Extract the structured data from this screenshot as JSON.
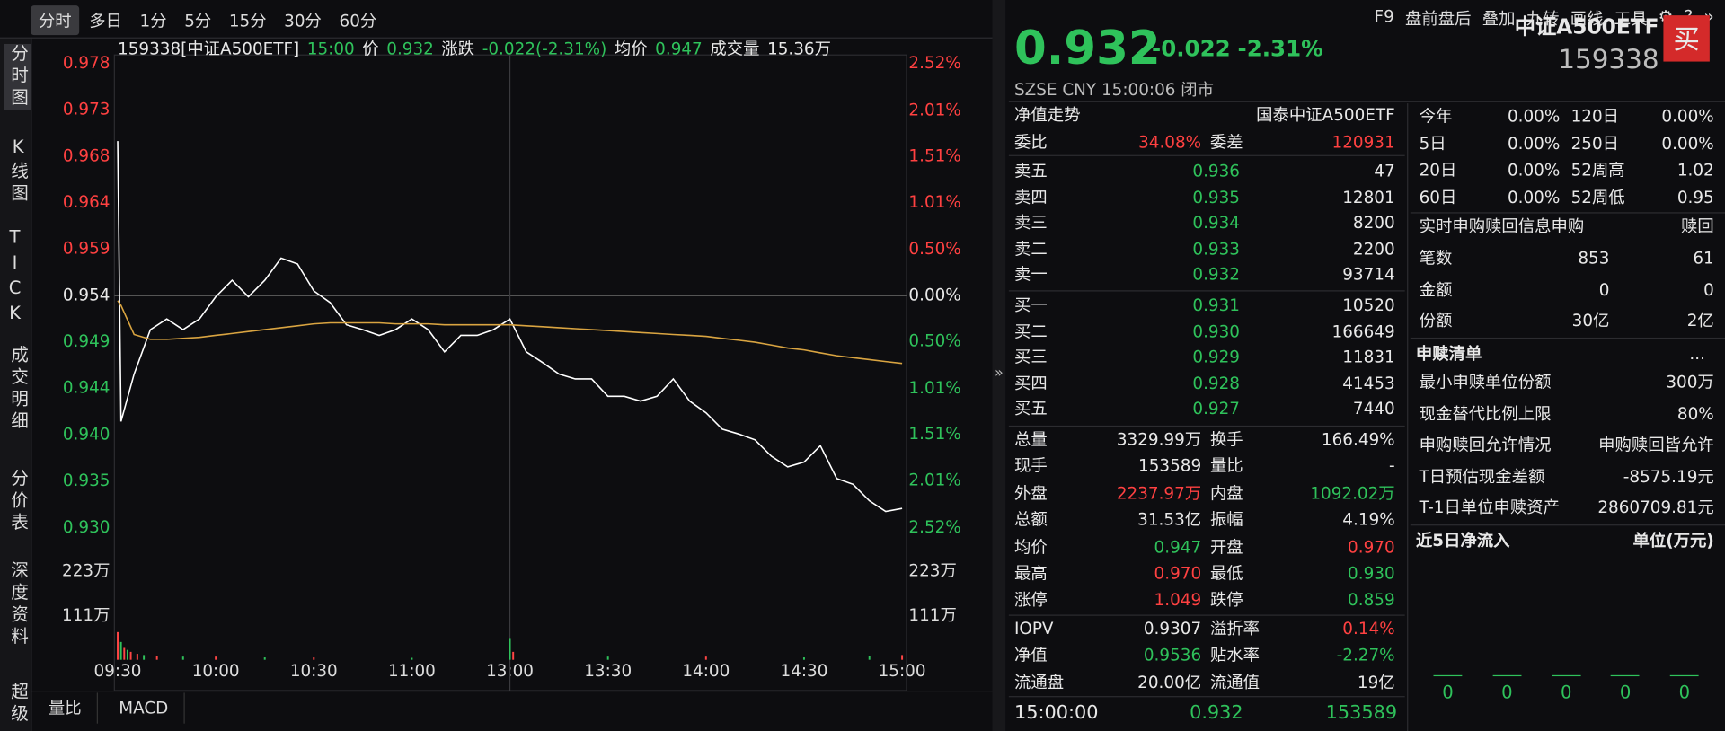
{
  "toolbar": {
    "tabs": [
      "分时",
      "多日",
      "1分",
      "5分",
      "15分",
      "30分",
      "60分"
    ],
    "tools": [
      "F9",
      "盘前盘后",
      "叠加",
      "九转",
      "画线",
      "工具"
    ]
  },
  "sidebar": [
    "分时图",
    "K线图",
    "TICK",
    "成交明细",
    "分价表",
    "深度资料",
    "超级"
  ],
  "chart_header": {
    "code": "159338[中证A500ETF]",
    "time": "15:00",
    "price_label": "价",
    "price": "0.932",
    "change_label": "涨跌",
    "change": "-0.022(-2.31%)",
    "avg_label": "均价",
    "avg": "0.947",
    "volume_label": "成交量",
    "volume": "15.36万"
  },
  "bottom_tabs": [
    "量比",
    "MACD"
  ],
  "chart_data": [
    {
      "type": "line",
      "x": [
        0,
        1,
        5,
        10,
        15,
        20,
        25,
        30,
        35,
        40,
        45,
        50,
        55,
        60,
        65,
        70,
        75,
        80,
        85,
        90,
        95,
        100,
        105,
        110,
        115,
        120,
        125,
        130,
        135,
        140,
        145,
        150,
        155,
        160,
        165,
        170,
        175,
        180,
        185,
        190,
        195,
        200,
        205,
        210,
        215,
        220,
        225,
        230,
        235,
        240
      ],
      "xlim": [
        0,
        240
      ],
      "xticks": [
        {
          "value": 0,
          "label": "09:30"
        },
        {
          "value": 30,
          "label": "10:00"
        },
        {
          "value": 60,
          "label": "10:30"
        },
        {
          "value": 90,
          "label": "11:00"
        },
        {
          "value": 120,
          "label": "13:00"
        },
        {
          "value": 150,
          "label": "13:30"
        },
        {
          "value": 180,
          "label": "14:00"
        },
        {
          "value": 210,
          "label": "14:30"
        },
        {
          "value": 240,
          "label": "15:00"
        }
      ],
      "ylim": [
        0.93,
        0.978
      ],
      "yticks": [
        {
          "value": 0.978,
          "label": "0.978"
        },
        {
          "value": 0.9732,
          "label": "0.973"
        },
        {
          "value": 0.9684,
          "label": "0.968"
        },
        {
          "value": 0.9636,
          "label": "0.964"
        },
        {
          "value": 0.9588,
          "label": "0.959"
        },
        {
          "value": 0.954,
          "label": "0.954"
        },
        {
          "value": 0.9492,
          "label": "0.949"
        },
        {
          "value": 0.9444,
          "label": "0.944"
        },
        {
          "value": 0.9396,
          "label": "0.940"
        },
        {
          "value": 0.9348,
          "label": "0.935"
        },
        {
          "value": 0.93,
          "label": "0.930"
        }
      ],
      "y2lim": [
        -2.52,
        2.52
      ],
      "y2ticks": [
        {
          "value": 2.52,
          "label": "2.52%"
        },
        {
          "value": 2.01,
          "label": "2.01%"
        },
        {
          "value": 1.51,
          "label": "1.51%"
        },
        {
          "value": 1.01,
          "label": "1.01%"
        },
        {
          "value": 0.5,
          "label": "0.50%"
        },
        {
          "value": 0,
          "label": "0.00%"
        },
        {
          "value": -0.5,
          "label": "0.50%"
        },
        {
          "value": -1.01,
          "label": "1.01%"
        },
        {
          "value": -1.51,
          "label": "1.51%"
        },
        {
          "value": -2.01,
          "label": "2.01%"
        },
        {
          "value": -2.52,
          "label": "2.52%"
        }
      ],
      "series": [
        {
          "color": "#ffffff",
          "values": [
            0.97,
            0.941,
            0.9459,
            0.9505,
            0.9516,
            0.9505,
            0.9516,
            0.9539,
            0.9556,
            0.9539,
            0.9556,
            0.9579,
            0.9573,
            0.9545,
            0.9533,
            0.951,
            0.9505,
            0.9499,
            0.9505,
            0.9516,
            0.9505,
            0.9482,
            0.9499,
            0.9499,
            0.9505,
            0.9516,
            0.9482,
            0.9471,
            0.9459,
            0.9454,
            0.9454,
            0.9436,
            0.9436,
            0.9431,
            0.9436,
            0.9454,
            0.9431,
            0.9419,
            0.9402,
            0.9397,
            0.9391,
            0.9374,
            0.9363,
            0.9368,
            0.9385,
            0.9351,
            0.9345,
            0.9328,
            0.9317,
            0.932
          ]
        },
        {
          "color": "#d9a441",
          "values": [
            0.9535,
            0.953,
            0.95,
            0.9495,
            0.9495,
            0.9496,
            0.9497,
            0.9499,
            0.9501,
            0.9503,
            0.9505,
            0.9507,
            0.9509,
            0.9511,
            0.9512,
            0.9512,
            0.9512,
            0.9512,
            0.9511,
            0.9511,
            0.9511,
            0.951,
            0.951,
            0.951,
            0.951,
            0.951,
            0.9509,
            0.9508,
            0.9507,
            0.9506,
            0.9505,
            0.9504,
            0.9503,
            0.9502,
            0.9501,
            0.95,
            0.9499,
            0.9498,
            0.9496,
            0.9494,
            0.9492,
            0.9489,
            0.9486,
            0.9484,
            0.9481,
            0.9478,
            0.9476,
            0.9474,
            0.9472,
            0.947
          ]
        }
      ]
    },
    {
      "type": "bar",
      "x": [
        0,
        1,
        2,
        3,
        4,
        6,
        8,
        12,
        20,
        30,
        45,
        60,
        90,
        120,
        121,
        150,
        180,
        210,
        230,
        240
      ],
      "values": [
        70,
        45,
        30,
        25,
        20,
        15,
        12,
        10,
        8,
        8,
        6,
        6,
        5,
        55,
        20,
        8,
        8,
        6,
        10,
        12
      ],
      "colors": [
        "#ff4545",
        "#2fc25b",
        "#ff4545",
        "#2fc25b",
        "#ff4545",
        "#ff4545",
        "#2fc25b",
        "#ff4545",
        "#2fc25b",
        "#ff4545",
        "#2fc25b",
        "#ff4545",
        "#2fc25b",
        "#2fc25b",
        "#ff4545",
        "#2fc25b",
        "#ff4545",
        "#2fc25b",
        "#2fc25b",
        "#ff4545"
      ],
      "xlim": [
        0,
        240
      ],
      "ylim": [
        0,
        250
      ],
      "yticks": [
        {
          "value": 223,
          "label": "223万"
        },
        {
          "value": 111,
          "label": "111万"
        }
      ]
    }
  ],
  "quote": {
    "price": "0.932",
    "change": "-0.022",
    "change_pct": "-2.31%",
    "name": "中证A500ETF",
    "code": "159338",
    "buy": "买",
    "status": "SZSE  CNY  15:00:06  闭市"
  },
  "panel": {
    "nav": [
      "净值走势",
      "国泰中证A500ETF"
    ],
    "ratio": [
      "委比",
      "34.08%",
      "委差",
      "120931"
    ],
    "asks": [
      [
        "卖五",
        "0.936",
        "47"
      ],
      [
        "卖四",
        "0.935",
        "12801"
      ],
      [
        "卖三",
        "0.934",
        "8200"
      ],
      [
        "卖二",
        "0.933",
        "2200"
      ],
      [
        "卖一",
        "0.932",
        "93714"
      ]
    ],
    "bids": [
      [
        "买一",
        "0.931",
        "10520"
      ],
      [
        "买二",
        "0.930",
        "166649"
      ],
      [
        "买三",
        "0.929",
        "11831"
      ],
      [
        "买四",
        "0.928",
        "41453"
      ],
      [
        "买五",
        "0.927",
        "7440"
      ]
    ],
    "stats": [
      [
        "总量",
        "3329.99万",
        "换手",
        "166.49%"
      ],
      [
        "现手",
        "153589",
        "量比",
        "-"
      ],
      [
        "外盘",
        "2237.97万",
        "内盘",
        "1092.02万"
      ],
      [
        "总额",
        "31.53亿",
        "振幅",
        "4.19%"
      ],
      [
        "均价",
        "0.947",
        "开盘",
        "0.970"
      ],
      [
        "最高",
        "0.970",
        "最低",
        "0.930"
      ],
      [
        "涨停",
        "1.049",
        "跌停",
        "0.859"
      ]
    ],
    "fund": [
      [
        "IOPV",
        "0.9307",
        "溢折率",
        "0.14%"
      ],
      [
        "净值",
        "0.9536",
        "贴水率",
        "-2.27%"
      ],
      [
        "流通盘",
        "20.00亿",
        "流通值",
        "19亿"
      ]
    ],
    "last_trade": [
      "15:00:00",
      "0.932",
      "153589"
    ]
  },
  "side": {
    "returns": [
      [
        "今年",
        "0.00%",
        "120日",
        "0.00%"
      ],
      [
        "5日",
        "0.00%",
        "250日",
        "0.00%"
      ],
      [
        "20日",
        "0.00%",
        "52周高",
        "1.02"
      ],
      [
        "60日",
        "0.00%",
        "52周低",
        "0.95"
      ]
    ],
    "creation": {
      "title": "实时申购赎回信息申购",
      "redeem": "赎回",
      "rows": [
        [
          "笔数",
          "853",
          "61"
        ],
        [
          "金额",
          "0",
          "0"
        ],
        [
          "份额",
          "30亿",
          "2亿"
        ]
      ]
    },
    "list": {
      "title": "申赎清单",
      "more": "...",
      "rows": [
        [
          "最小申赎单位份额",
          "300万"
        ],
        [
          "现金替代比例上限",
          "80%"
        ],
        [
          "申购赎回允许情况",
          "申购赎回皆允许"
        ],
        [
          "T日预估现金差额",
          "-8575.19元"
        ],
        [
          "T-1日单位申赎资产",
          "2860709.81元"
        ]
      ]
    },
    "inflow": {
      "title": "近5日净流入",
      "unit": "单位(万元)",
      "values": [
        0,
        0,
        0,
        0,
        0
      ]
    }
  }
}
